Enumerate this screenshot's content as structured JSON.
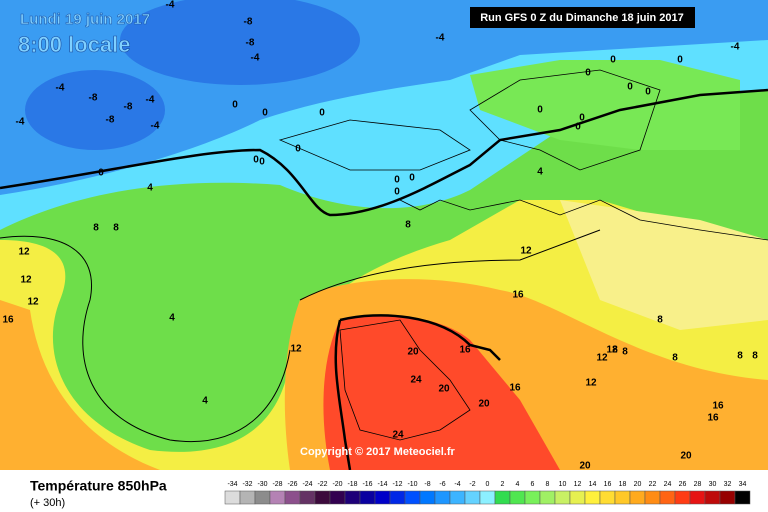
{
  "header": {
    "date": "Lundi 19 juin 2017",
    "time": "8:00 locale",
    "run": "Run GFS 0 Z du Dimanche 18 juin 2017"
  },
  "footer": {
    "title": "Température 850hPa",
    "lead": "(+ 30h)",
    "copyright": "Copyright © 2017 Meteociel.fr"
  },
  "legend": {
    "labels": [
      -34,
      -32,
      -30,
      -28,
      -26,
      -24,
      -22,
      -20,
      -18,
      -16,
      -14,
      -12,
      -10,
      -8,
      -6,
      -4,
      -2,
      0,
      2,
      4,
      6,
      8,
      10,
      12,
      14,
      16,
      18,
      20,
      22,
      24,
      26,
      28,
      30,
      32,
      34
    ],
    "colors": [
      "#dcdcdc",
      "#b4b4b4",
      "#8c8c8c",
      "#b482b4",
      "#8c508c",
      "#643264",
      "#3c0a3c",
      "#320050",
      "#1e0078",
      "#0a00a0",
      "#0000c8",
      "#0028e6",
      "#0050ff",
      "#0078ff",
      "#1e96ff",
      "#3cb4ff",
      "#64d2ff",
      "#8cf0ff",
      "#32dc50",
      "#50e650",
      "#78f05a",
      "#a0f064",
      "#c8f064",
      "#e6f050",
      "#fff03c",
      "#ffdc32",
      "#ffc828",
      "#ffaa1e",
      "#ff8c14",
      "#ff6414",
      "#ff3c14",
      "#e61414",
      "#be0a0a",
      "#960000",
      "#000000"
    ]
  },
  "contour_labels": [
    -4,
    -8,
    -8,
    -4,
    -4,
    -4,
    -4,
    -8,
    -8,
    -8,
    -4,
    -4,
    -4,
    0,
    0,
    0,
    0,
    0,
    0,
    0,
    0,
    0,
    0,
    0,
    0,
    0,
    0,
    0,
    0,
    0,
    0,
    4,
    4,
    4,
    4,
    8,
    8,
    8,
    8,
    8,
    8,
    8,
    8,
    8,
    12,
    12,
    12,
    12,
    12,
    12,
    12,
    12,
    16,
    16,
    16,
    16,
    16,
    16,
    20,
    20,
    20,
    20,
    20,
    24,
    24
  ]
}
